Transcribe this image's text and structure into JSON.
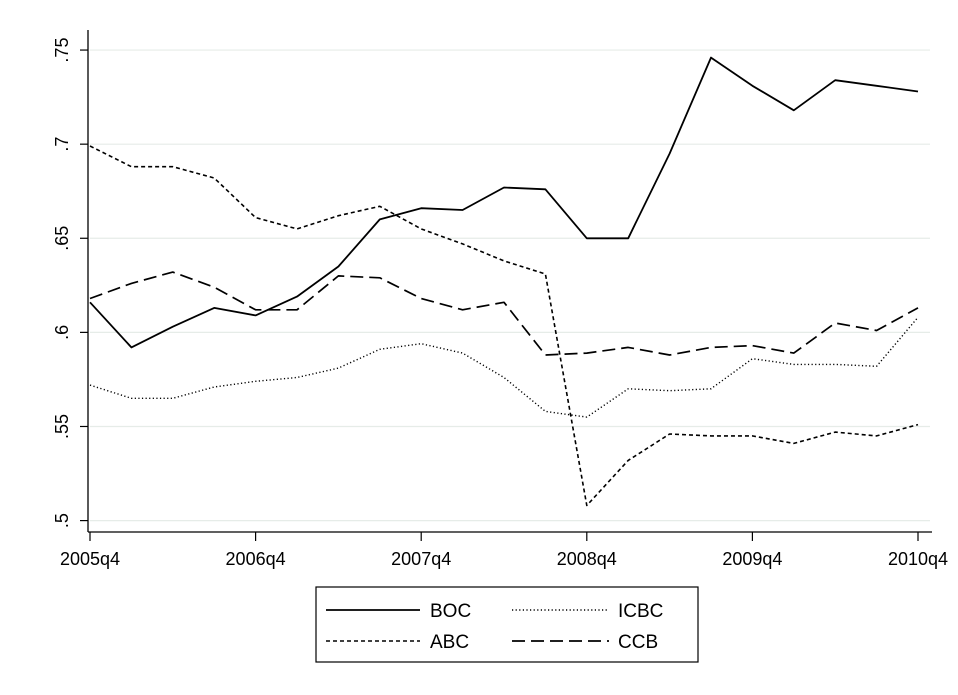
{
  "chart_data": {
    "type": "line",
    "title": "",
    "xlabel": "",
    "ylabel": "",
    "x": [
      "2005q4",
      "2006q1",
      "2006q2",
      "2006q3",
      "2006q4",
      "2007q1",
      "2007q2",
      "2007q3",
      "2007q4",
      "2008q1",
      "2008q2",
      "2008q3",
      "2008q4",
      "2009q1",
      "2009q2",
      "2009q3",
      "2009q4",
      "2010q1",
      "2010q2",
      "2010q3",
      "2010q4"
    ],
    "x_ticks": [
      "2005q4",
      "2006q4",
      "2007q4",
      "2008q4",
      "2009q4",
      "2010q4"
    ],
    "y_ticks": [
      0.5,
      0.55,
      0.6,
      0.65,
      0.7,
      0.75
    ],
    "y_tick_labels": [
      ".5",
      ".55",
      ".6",
      ".65",
      ".7",
      ".75"
    ],
    "ylim": [
      0.495,
      0.758
    ],
    "grid": "horizontal",
    "legend_placement": "bottom",
    "series": [
      {
        "name": "BOC",
        "style": "solid",
        "values": [
          0.616,
          0.592,
          0.603,
          0.613,
          0.609,
          0.619,
          0.635,
          0.66,
          0.666,
          0.665,
          0.677,
          0.676,
          0.65,
          0.65,
          0.695,
          0.746,
          0.731,
          0.718,
          0.734,
          0.731,
          0.728
        ]
      },
      {
        "name": "ICBC",
        "style": "dotted",
        "values": [
          0.572,
          0.565,
          0.565,
          0.571,
          0.574,
          0.576,
          0.581,
          0.591,
          0.594,
          0.589,
          0.576,
          0.558,
          0.555,
          0.57,
          0.569,
          0.57,
          0.586,
          0.583,
          0.583,
          0.582,
          0.608
        ]
      },
      {
        "name": "ABC",
        "style": "short-dash",
        "values": [
          0.699,
          0.688,
          0.688,
          0.682,
          0.661,
          0.655,
          0.662,
          0.667,
          0.655,
          0.647,
          0.638,
          0.631,
          0.508,
          0.532,
          0.546,
          0.545,
          0.545,
          0.541,
          0.547,
          0.545,
          0.551
        ]
      },
      {
        "name": "CCB",
        "style": "long-dash",
        "values": [
          0.618,
          0.626,
          0.632,
          0.624,
          0.612,
          0.612,
          0.63,
          0.629,
          0.618,
          0.612,
          0.616,
          0.588,
          0.589,
          0.592,
          0.588,
          0.592,
          0.593,
          0.589,
          0.605,
          0.601,
          0.613
        ]
      }
    ]
  }
}
